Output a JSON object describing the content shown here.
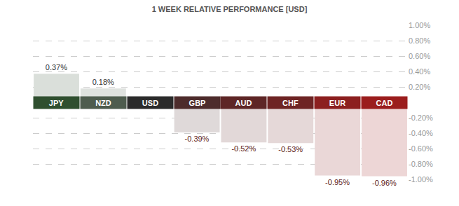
{
  "chart_data": {
    "type": "bar",
    "title": "1 WEEK RELATIVE PERFORMANCE [USD]",
    "categories": [
      "JPY",
      "NZD",
      "USD",
      "GBP",
      "AUD",
      "CHF",
      "EUR",
      "CAD"
    ],
    "values": [
      0.37,
      0.18,
      0,
      -0.39,
      -0.52,
      -0.53,
      -0.95,
      -0.96
    ],
    "value_labels": [
      "0.37%",
      "0.18%",
      null,
      "-0.39%",
      "-0.52%",
      "-0.53%",
      "-0.95%",
      "-0.96%"
    ],
    "colors": [
      "#2f4f2f",
      "#4e5c4e",
      "#2b2b2b",
      "#4d2c2c",
      "#5e2626",
      "#6e2424",
      "#8c1f1f",
      "#9b1d1d"
    ],
    "ylim": [
      -1,
      1
    ],
    "yticks": [
      {
        "value": 1,
        "label": "1.00%"
      },
      {
        "value": 0.8,
        "label": "0.80%"
      },
      {
        "value": 0.6,
        "label": "0.60%"
      },
      {
        "value": 0.4,
        "label": "0.40%"
      },
      {
        "value": 0.2,
        "label": "0.20%"
      },
      {
        "value": -0.2,
        "label": "-0.20%"
      },
      {
        "value": -0.4,
        "label": "-0.40%"
      },
      {
        "value": -0.6,
        "label": "-0.60%"
      },
      {
        "value": -0.8,
        "label": "-0.80%"
      },
      {
        "value": -1,
        "label": "-1.00%"
      }
    ],
    "grid": true,
    "data_labels": true
  }
}
